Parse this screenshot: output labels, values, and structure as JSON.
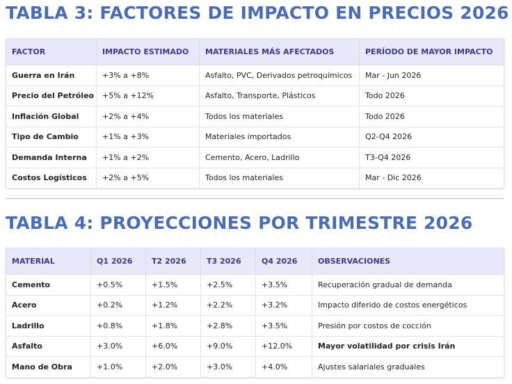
{
  "table3": {
    "title": "TABLA 3: FACTORES DE IMPACTO EN PRECIOS 2026",
    "header": [
      "FACTOR",
      "IMPACTO ESTIMADO",
      "MATERIALES MÁS AFECTADOS",
      "PERÍODO DE MAYOR IMPACTO"
    ],
    "rows": [
      [
        "Guerra en Irán",
        "+3% a +8%",
        "Asfalto, PVC, Derivados petroquímicos",
        "Mar - Jun 2026"
      ],
      [
        "Precio del Petróleo",
        "+5% a +12%",
        "Asfalto, Transporte, Plásticos",
        "Todo 2026"
      ],
      [
        "Inflación Global",
        "+2% a +4%",
        "Todos los materiales",
        "Todo 2026"
      ],
      [
        "Tipo de Cambio",
        "+1% a +3%",
        "Materiales importados",
        "Q2-Q4 2026"
      ],
      [
        "Demanda Interna",
        "+1% a +2%",
        "Cemento, Acero, Ladrillo",
        "T3-Q4 2026"
      ],
      [
        "Costos Logísticos",
        "+2% a +5%",
        "Todos los materiales",
        "Mar - Dic 2026"
      ]
    ]
  },
  "table4": {
    "title": "TABLA 4: PROYECCIONES POR TRIMESTRE 2026",
    "header": [
      "MATERIAL",
      "Q1 2026",
      "T2 2026",
      "T3 2026",
      "Q4 2026",
      "OBSERVACIONES"
    ],
    "rows": [
      [
        "Cemento",
        "+0.5%",
        "+1.5%",
        "+2.5%",
        "+3.5%",
        "Recuperación gradual de demanda"
      ],
      [
        "Acero",
        "+0.2%",
        "+1.2%",
        "+2.2%",
        "+3.2%",
        "Impacto diferido de costos energéticos"
      ],
      [
        "Ladrillo",
        "+0.8%",
        "+1.8%",
        "+2.8%",
        "+3.5%",
        "Presión por costos de cocción"
      ],
      [
        "Asfalto",
        "+3.0%",
        "+6.0%",
        "+9.0%",
        "+12.0%",
        "Mayor volatilidad por crisis Irán"
      ],
      [
        "Mano de Obra",
        "+1.0%",
        "+2.0%",
        "+3.0%",
        "+4.0%",
        "Ajustes salariales graduales"
      ]
    ]
  }
}
